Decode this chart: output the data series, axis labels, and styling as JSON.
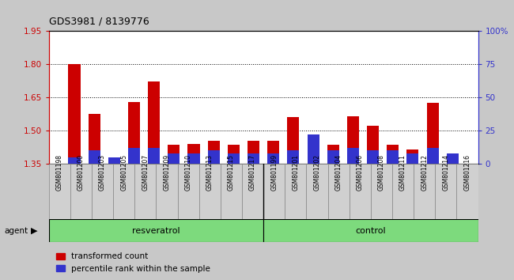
{
  "title": "GDS3981 / 8139776",
  "samples": [
    "GSM801198",
    "GSM801200",
    "GSM801203",
    "GSM801205",
    "GSM801207",
    "GSM801209",
    "GSM801210",
    "GSM801213",
    "GSM801215",
    "GSM801217",
    "GSM801199",
    "GSM801201",
    "GSM801202",
    "GSM801204",
    "GSM801206",
    "GSM801208",
    "GSM801211",
    "GSM801212",
    "GSM801214",
    "GSM801216"
  ],
  "transformed_count": [
    1.8,
    1.575,
    1.37,
    1.63,
    1.72,
    1.435,
    1.44,
    1.455,
    1.435,
    1.455,
    1.455,
    1.56,
    1.365,
    1.435,
    1.565,
    1.52,
    1.435,
    1.415,
    1.625,
    1.385
  ],
  "percentile_rank": [
    5,
    10,
    5,
    12,
    12,
    8,
    8,
    10,
    8,
    8,
    8,
    10,
    22,
    10,
    12,
    10,
    10,
    8,
    12,
    8
  ],
  "groups": [
    "resveratrol",
    "resveratrol",
    "resveratrol",
    "resveratrol",
    "resveratrol",
    "resveratrol",
    "resveratrol",
    "resveratrol",
    "resveratrol",
    "resveratrol",
    "control",
    "control",
    "control",
    "control",
    "control",
    "control",
    "control",
    "control",
    "control",
    "control"
  ],
  "bar_color_red": "#cc0000",
  "bar_color_blue": "#3333cc",
  "ylim_left": [
    1.35,
    1.95
  ],
  "ylim_right": [
    0,
    100
  ],
  "yticks_left": [
    1.35,
    1.5,
    1.65,
    1.8,
    1.95
  ],
  "yticks_right": [
    0,
    25,
    50,
    75,
    100
  ],
  "legend_items": [
    "transformed count",
    "percentile rank within the sample"
  ],
  "fig_bg": "#c8c8c8",
  "plot_bg": "#ffffff",
  "sample_label_bg": "#c8c8c8"
}
